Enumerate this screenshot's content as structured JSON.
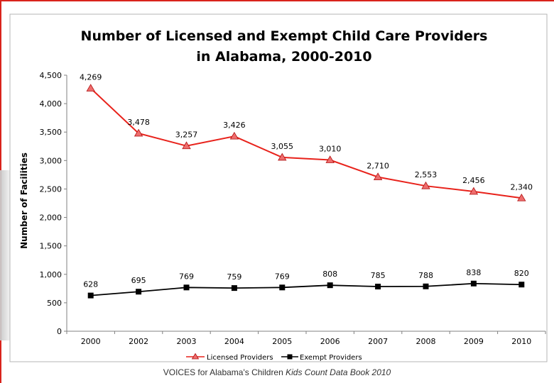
{
  "chart_data": {
    "type": "line",
    "title_lines": [
      "Number of Licensed and Exempt Child Care Providers",
      "in Alabama, 2000-2010"
    ],
    "xlabel": "",
    "ylabel": "Number of Facilities",
    "categories": [
      "2000",
      "2002",
      "2003",
      "2004",
      "2005",
      "2006",
      "2007",
      "2008",
      "2009",
      "2010"
    ],
    "ylim": [
      0,
      4500
    ],
    "yticks": [
      0,
      500,
      1000,
      1500,
      2000,
      2500,
      3000,
      3500,
      4000,
      4500
    ],
    "ytick_labels": [
      "0",
      "500",
      "1,000",
      "1,500",
      "2,000",
      "2,500",
      "3,000",
      "3,500",
      "4,000",
      "4,500"
    ],
    "grid": false,
    "legend_position": "bottom",
    "series": [
      {
        "name": "Licensed Providers",
        "color": "#e8221b",
        "marker": "triangle",
        "values": [
          4269,
          3478,
          3257,
          3426,
          3055,
          3010,
          2710,
          2553,
          2456,
          2340
        ],
        "labels": [
          "4,269",
          "3,478",
          "3,257",
          "3,426",
          "3,055",
          "3,010",
          "2,710",
          "2,553",
          "2,456",
          "2,340"
        ]
      },
      {
        "name": "Exempt Providers",
        "color": "#000000",
        "marker": "square",
        "values": [
          628,
          695,
          769,
          759,
          769,
          808,
          785,
          788,
          838,
          820
        ],
        "labels": [
          "628",
          "695",
          "769",
          "759",
          "769",
          "808",
          "785",
          "788",
          "838",
          "820"
        ]
      }
    ]
  },
  "footer": {
    "source_plain": "VOICES for Alabama's Children ",
    "source_italic": "Kids Count Data Book 2010"
  }
}
